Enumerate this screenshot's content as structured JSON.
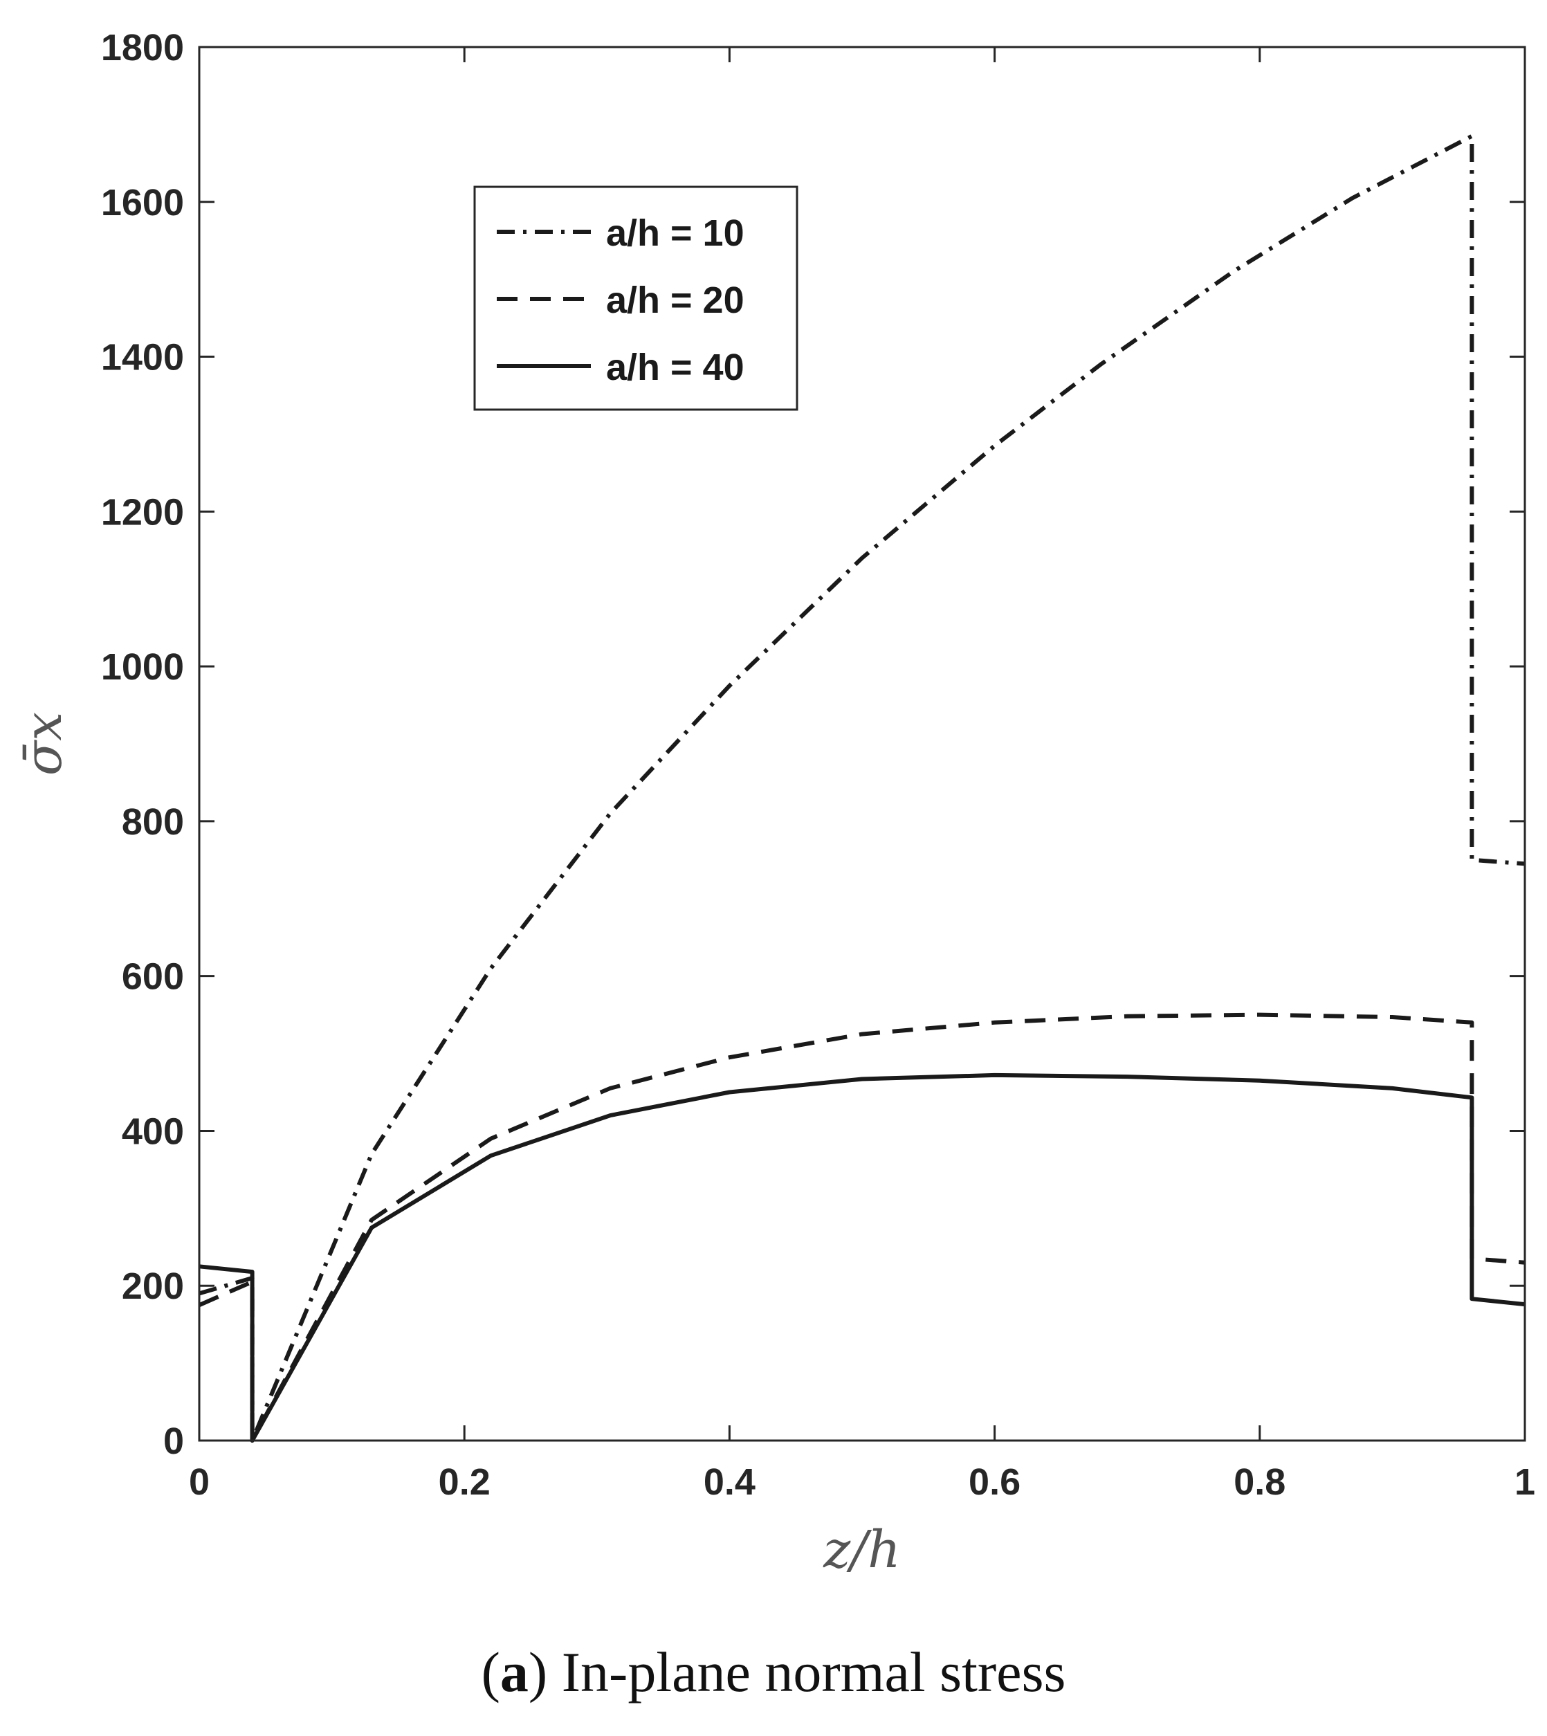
{
  "chart_data": {
    "type": "line",
    "title": "",
    "xlabel": "z/h",
    "ylabel": "σ̄x",
    "xlim": [
      0,
      1
    ],
    "ylim": [
      0,
      1800
    ],
    "xticks": [
      "0",
      "0.2",
      "0.4",
      "0.6",
      "0.8",
      "1"
    ],
    "yticks": [
      "0",
      "200",
      "400",
      "600",
      "800",
      "1000",
      "1200",
      "1400",
      "1600",
      "1800"
    ],
    "legend_position": "top-left",
    "series": [
      {
        "name": "a/h = 10",
        "style": "dash-dot",
        "color": "#1a1a1a",
        "x": [
          0,
          0.04,
          0.04,
          0.13,
          0.22,
          0.31,
          0.4,
          0.5,
          0.6,
          0.68,
          0.78,
          0.87,
          0.96,
          0.96,
          1.0
        ],
        "y": [
          190,
          210,
          0,
          370,
          610,
          810,
          975,
          1140,
          1285,
          1390,
          1510,
          1605,
          1685,
          750,
          745
        ]
      },
      {
        "name": "a/h = 20",
        "style": "dashed",
        "color": "#1a1a1a",
        "x": [
          0,
          0.04,
          0.04,
          0.13,
          0.22,
          0.31,
          0.4,
          0.5,
          0.6,
          0.7,
          0.8,
          0.9,
          0.96,
          0.96,
          1.0
        ],
        "y": [
          175,
          205,
          0,
          285,
          390,
          455,
          495,
          525,
          540,
          548,
          550,
          547,
          540,
          235,
          230
        ]
      },
      {
        "name": "a/h = 40",
        "style": "solid",
        "color": "#1a1a1a",
        "x": [
          0,
          0.04,
          0.04,
          0.13,
          0.22,
          0.31,
          0.4,
          0.5,
          0.6,
          0.7,
          0.8,
          0.9,
          0.96,
          0.96,
          1.0
        ],
        "y": [
          225,
          218,
          0,
          275,
          368,
          420,
          450,
          467,
          472,
          470,
          465,
          455,
          443,
          183,
          176
        ]
      }
    ]
  },
  "caption": {
    "letter": "a",
    "text": " In-plane normal stress"
  }
}
